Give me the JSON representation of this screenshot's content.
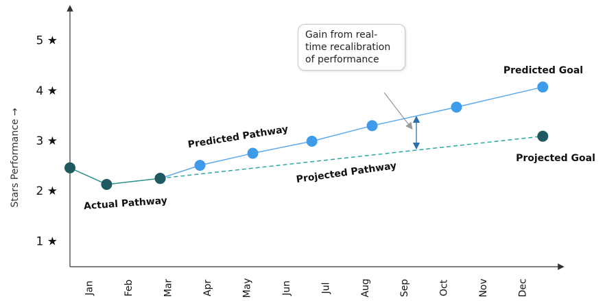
{
  "chart_data": {
    "type": "line",
    "y_label": "Stars Performance →",
    "xlim": [
      0.5,
      13
    ],
    "xticks": [
      {
        "value": 1,
        "label": "Jan"
      },
      {
        "value": 2,
        "label": "Feb"
      },
      {
        "value": 3,
        "label": "Mar"
      },
      {
        "value": 4,
        "label": "Apr"
      },
      {
        "value": 5,
        "label": "May"
      },
      {
        "value": 6,
        "label": "Jun"
      },
      {
        "value": 7,
        "label": "Jul"
      },
      {
        "value": 8,
        "label": "Aug"
      },
      {
        "value": 9,
        "label": "Sep"
      },
      {
        "value": 10,
        "label": "Oct"
      },
      {
        "value": 11,
        "label": "Nov"
      },
      {
        "value": 12,
        "label": "Dec"
      }
    ],
    "ylim": [
      0.5,
      5.65
    ],
    "yticks": [
      {
        "value": 1,
        "label": "1 ★"
      },
      {
        "value": 2,
        "label": "2 ★"
      },
      {
        "value": 3,
        "label": "3 ★"
      },
      {
        "value": 4,
        "label": "4 ★"
      },
      {
        "value": 5,
        "label": "5 ★"
      }
    ],
    "series": [
      {
        "name": "Predicted Pathway",
        "color": "#5aa9ea",
        "marker_color": "#3d9be9",
        "dashed": false,
        "x": [
          2.79,
          3.8,
          5.14,
          6.64,
          8.17,
          10.31,
          12.5
        ],
        "values": [
          2.26,
          2.52,
          2.76,
          3.0,
          3.31,
          3.68,
          4.08
        ]
      },
      {
        "name": "Projected Pathway",
        "color": "#2aa8a0",
        "marker_color": "#1f5a60",
        "dashed": true,
        "x": [
          2.79,
          12.5
        ],
        "values": [
          2.26,
          3.1
        ]
      },
      {
        "name": "Actual Pathway",
        "color": "#2a8f8f",
        "marker_color": "#1f5a60",
        "dashed": false,
        "x": [
          0.5,
          1.43,
          2.79
        ],
        "values": [
          2.47,
          2.14,
          2.26
        ]
      }
    ],
    "annotations": {
      "predicted_goal": "Predicted Goal",
      "projected_goal": "Projected Goal",
      "gain": "Gain from real-time recalibration of performance"
    }
  }
}
